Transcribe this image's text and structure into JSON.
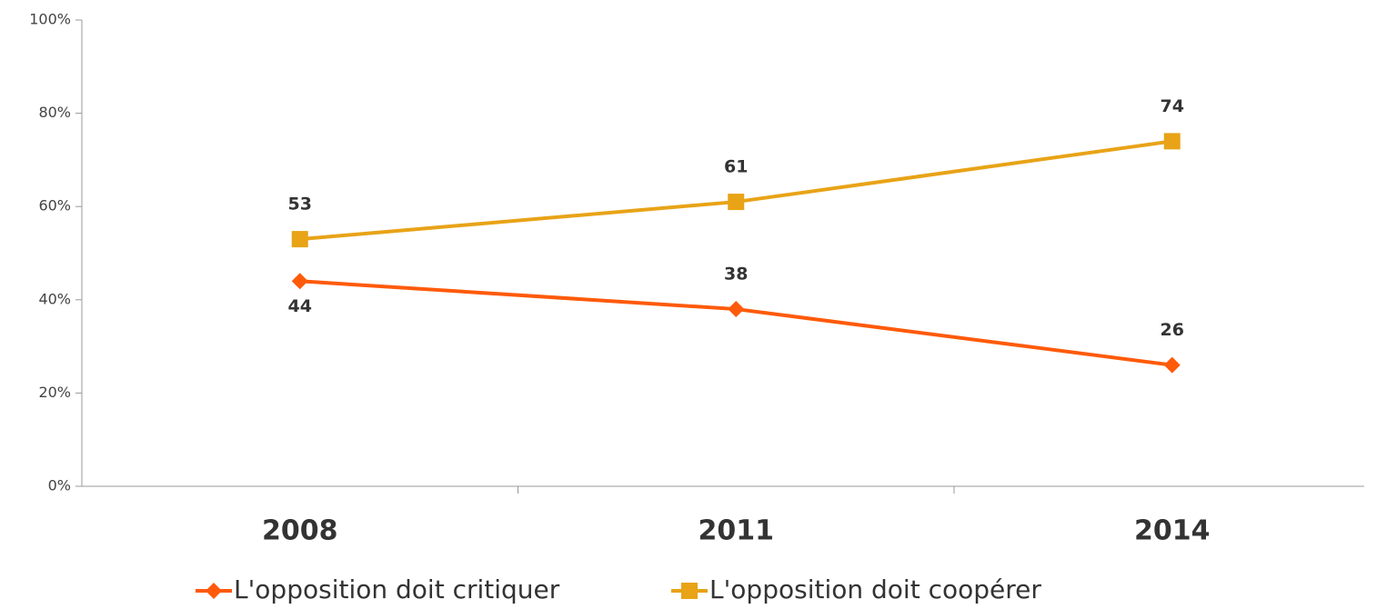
{
  "chart_data": {
    "type": "line",
    "categories": [
      "2008",
      "2011",
      "2014"
    ],
    "series": [
      {
        "name": "L'opposition doit critiquer",
        "color": "#ff5a0a",
        "marker": "diamond",
        "values": [
          44,
          38,
          26
        ]
      },
      {
        "name": "L'opposition doit coopérer",
        "color": "#e8a317",
        "marker": "square",
        "values": [
          53,
          61,
          74
        ]
      }
    ],
    "ylim": [
      0,
      100
    ],
    "yticks": [
      {
        "value": 0,
        "label": "0%"
      },
      {
        "value": 20,
        "label": "20%"
      },
      {
        "value": 40,
        "label": "40%"
      },
      {
        "value": 60,
        "label": "60%"
      },
      {
        "value": 80,
        "label": "80%"
      },
      {
        "value": 100,
        "label": "100%"
      }
    ],
    "grid": false,
    "legend": "bottom"
  }
}
